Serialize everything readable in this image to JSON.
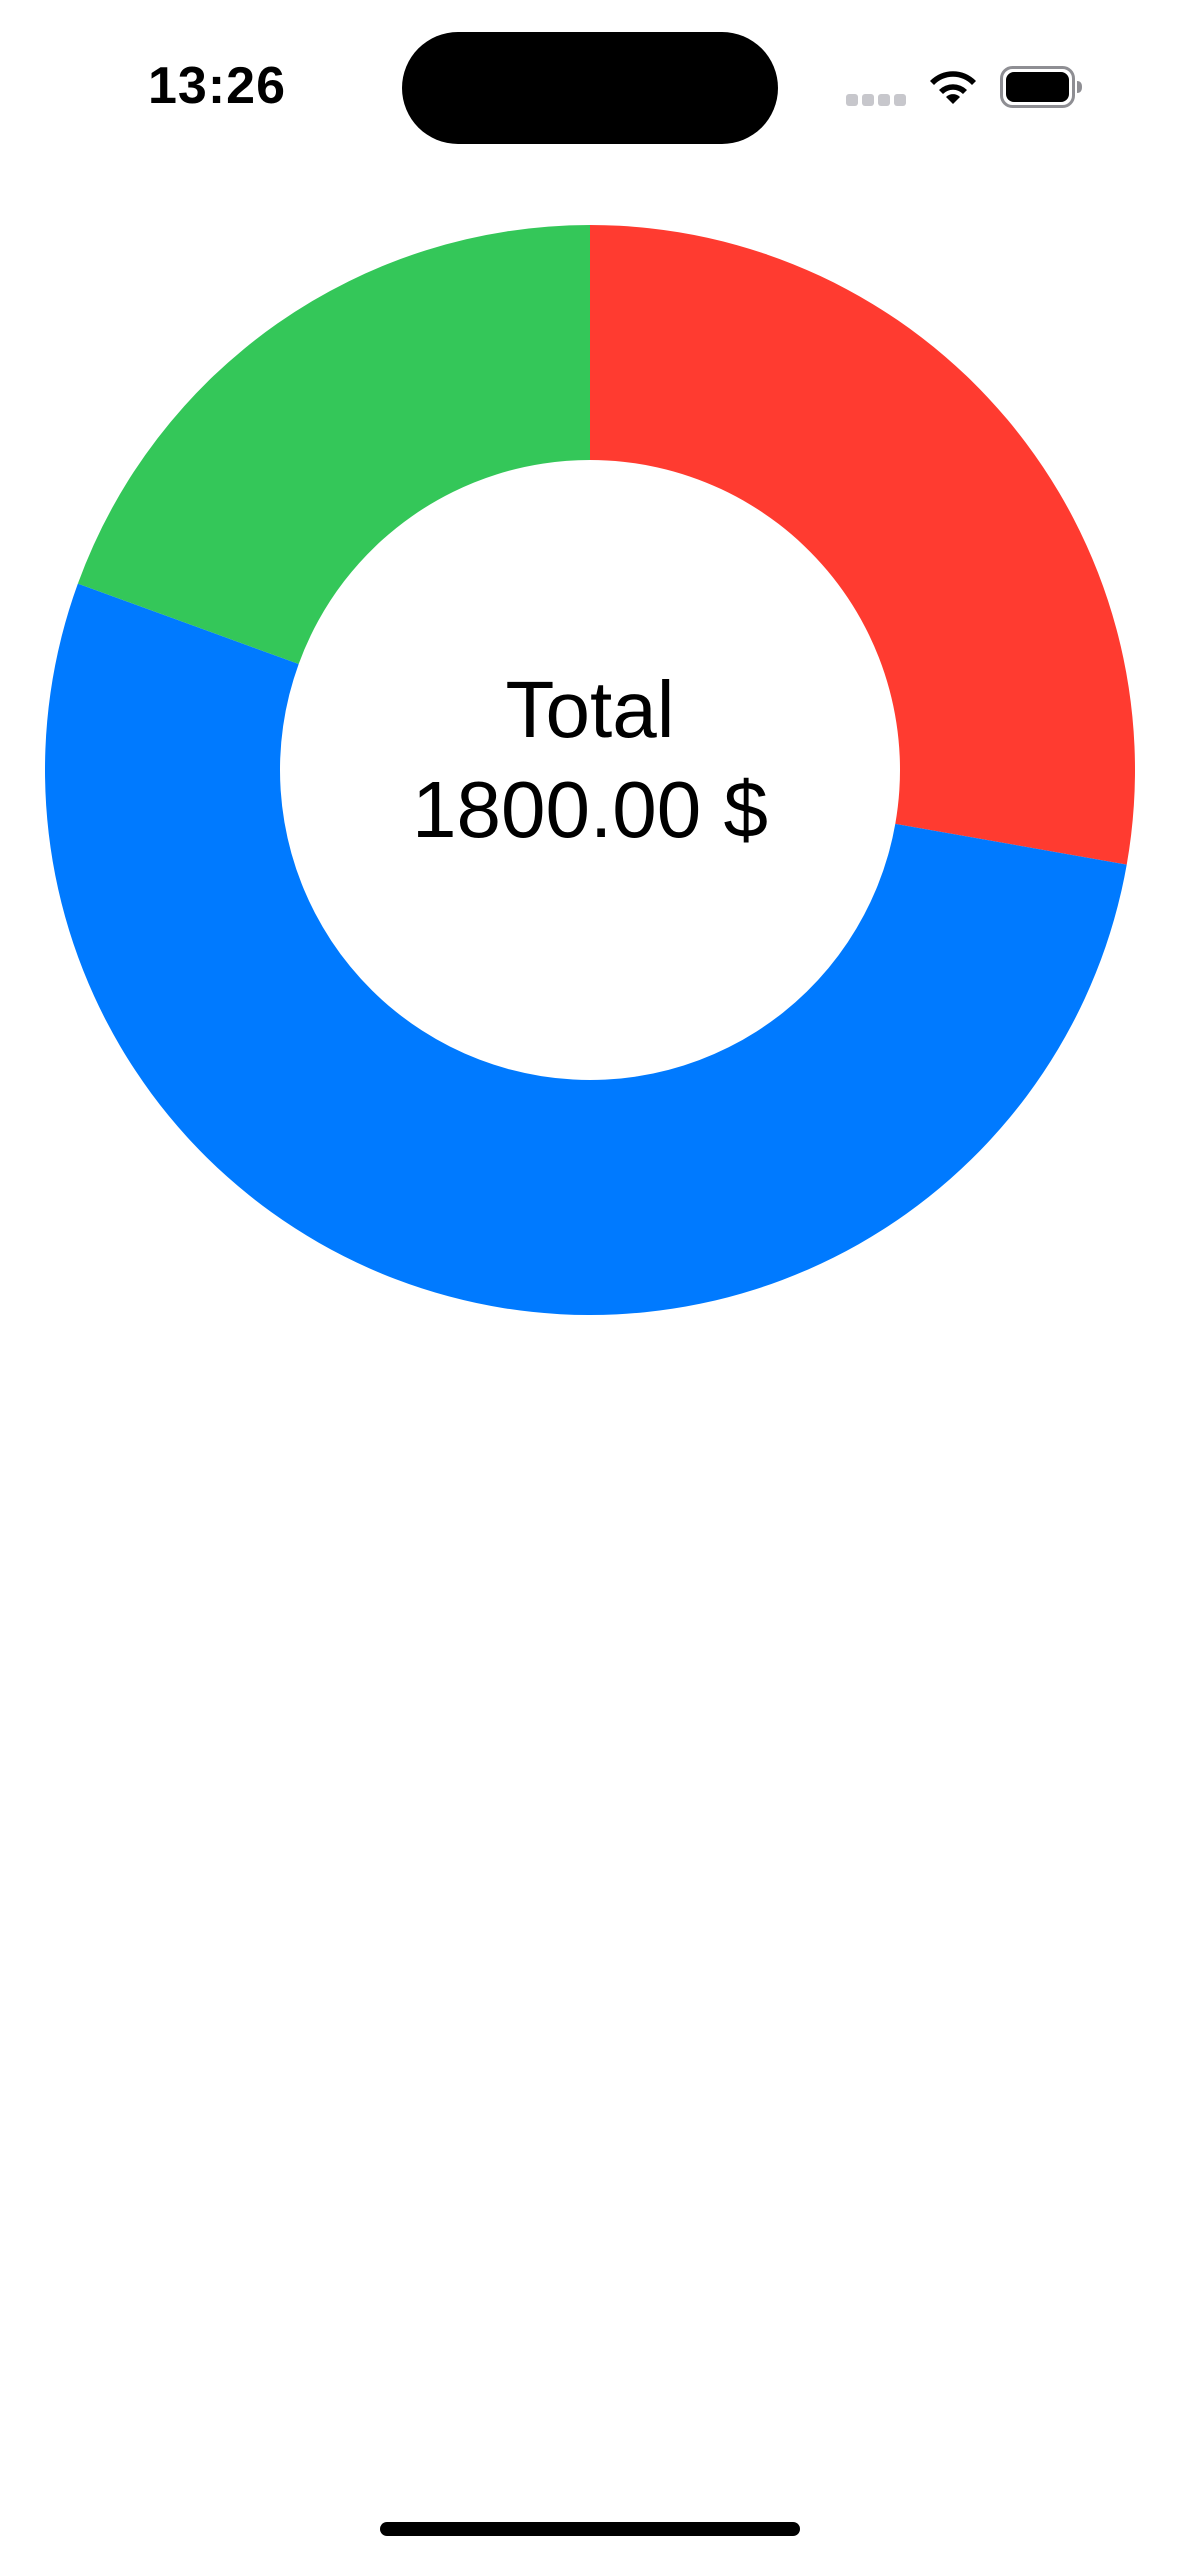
{
  "status_bar": {
    "time": "13:26",
    "icons": [
      "cellular-signal-icon",
      "wifi-icon",
      "battery-icon"
    ]
  },
  "center": {
    "title": "Total",
    "value": "1800.00 $"
  },
  "chart_data": {
    "type": "pie",
    "title": "",
    "style": "donut",
    "total": 1800,
    "slices": [
      {
        "value": 500,
        "color": "#FF3B30"
      },
      {
        "value": 950,
        "color": "#007AFF"
      },
      {
        "value": 350,
        "color": "#34C759"
      }
    ]
  }
}
